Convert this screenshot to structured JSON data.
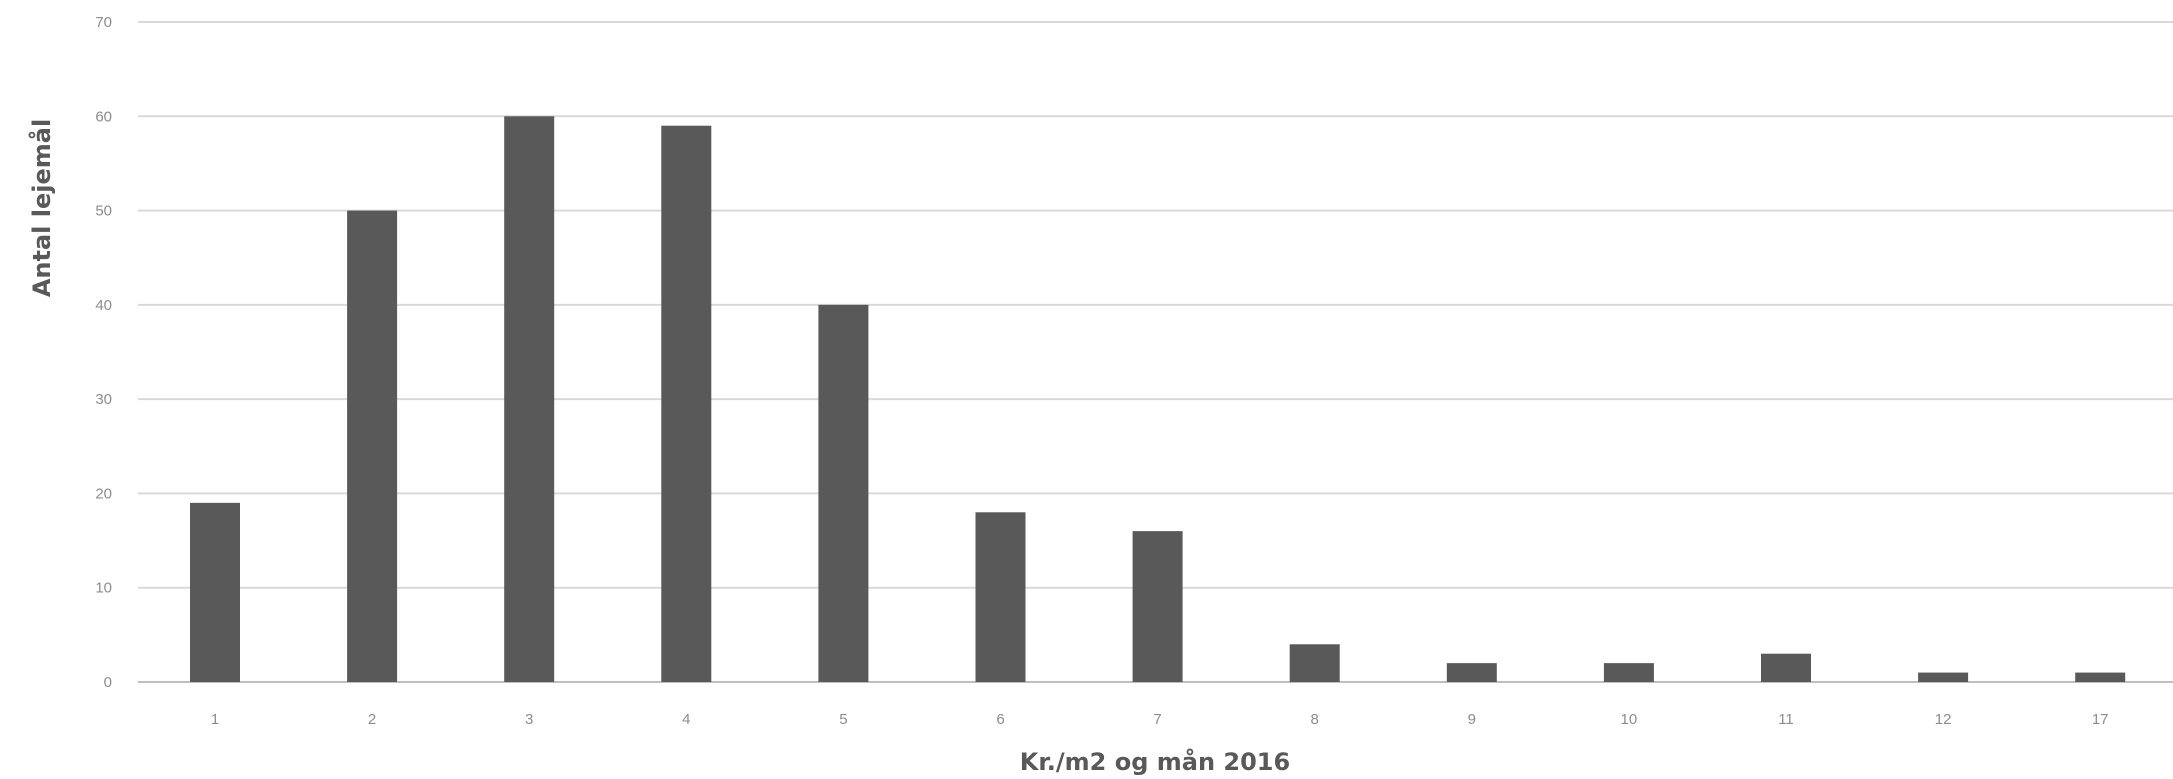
{
  "chart_data": {
    "type": "bar",
    "title": "",
    "xlabel": "Kr./m2 og mån 2016",
    "ylabel": "Antal lejemål",
    "ylim": [
      0,
      70
    ],
    "yticks": [
      0,
      10,
      20,
      30,
      40,
      50,
      60,
      70
    ],
    "categories": [
      "1",
      "2",
      "3",
      "4",
      "5",
      "6",
      "7",
      "8",
      "9",
      "10",
      "11",
      "12",
      "17"
    ],
    "values": [
      19,
      50,
      60,
      59,
      40,
      18,
      16,
      4,
      2,
      2,
      3,
      1,
      1
    ],
    "grid": true,
    "legend": "none",
    "bar_color": "#595959"
  }
}
